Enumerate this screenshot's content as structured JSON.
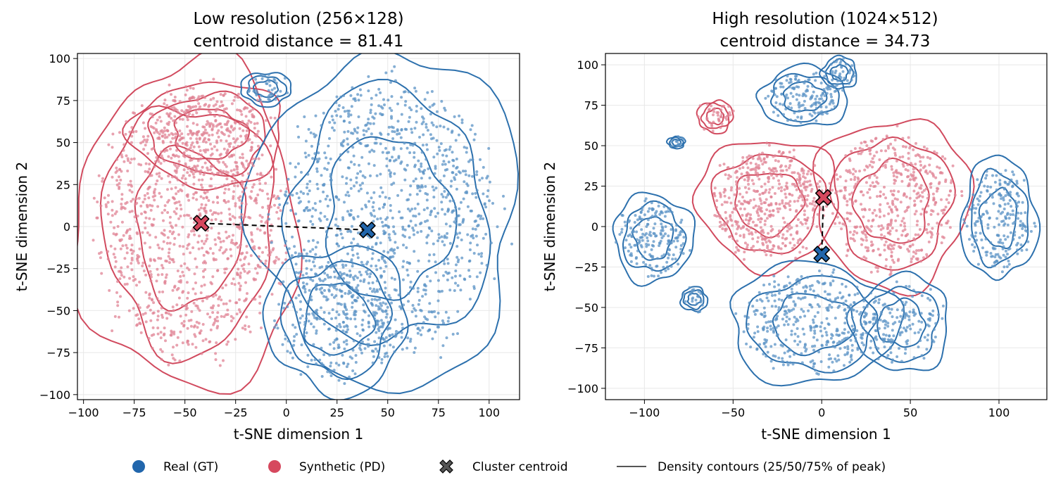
{
  "chart_data": [
    {
      "type": "scatter",
      "title": "Low resolution (256×128)",
      "subtitle": "centroid distance = 81.41",
      "xlabel": "t-SNE dimension 1",
      "ylabel": "t-SNE dimension 2",
      "xlim": [
        -103,
        115
      ],
      "ylim": [
        -103,
        103
      ],
      "xticks": [
        -100,
        -75,
        -50,
        -25,
        0,
        25,
        50,
        75,
        100
      ],
      "yticks": [
        -100,
        -75,
        -50,
        -25,
        0,
        25,
        50,
        75,
        100
      ],
      "grid": true,
      "centroids": [
        {
          "name": "Synthetic (PD)",
          "x": -42,
          "y": 2
        },
        {
          "name": "Real (GT)",
          "x": 40,
          "y": -2
        }
      ],
      "clusters": [
        {
          "series": "Synthetic (PD)",
          "cx": -48,
          "cy": 0,
          "rx": 44,
          "ry": 78,
          "n": 1100
        },
        {
          "series": "Synthetic (PD)",
          "cx": -38,
          "cy": 55,
          "rx": 30,
          "ry": 25,
          "n": 250
        },
        {
          "series": "Real (GT)",
          "cx": 50,
          "cy": 5,
          "rx": 52,
          "ry": 80,
          "n": 1100
        },
        {
          "series": "Real (GT)",
          "cx": 25,
          "cy": -55,
          "rx": 28,
          "ry": 35,
          "n": 250
        },
        {
          "series": "Real (GT)",
          "cx": -10,
          "cy": 82,
          "rx": 10,
          "ry": 8,
          "n": 40
        }
      ]
    },
    {
      "type": "scatter",
      "title": "High resolution (1024×512)",
      "subtitle": "centroid distance = 34.73",
      "xlabel": "t-SNE dimension 1",
      "ylabel": "t-SNE dimension 2",
      "xlim": [
        -122,
        127
      ],
      "ylim": [
        -107,
        107
      ],
      "xticks": [
        -100,
        -50,
        0,
        50,
        100
      ],
      "yticks": [
        -100,
        -75,
        -50,
        -25,
        0,
        25,
        50,
        75,
        100
      ],
      "grid": true,
      "centroids": [
        {
          "name": "Synthetic (PD)",
          "x": 1,
          "y": 18
        },
        {
          "name": "Real (GT)",
          "x": 0,
          "y": -17
        }
      ],
      "clusters": [
        {
          "series": "Synthetic (PD)",
          "cx": -30,
          "cy": 15,
          "rx": 32,
          "ry": 32,
          "n": 500
        },
        {
          "series": "Synthetic (PD)",
          "cx": 40,
          "cy": 15,
          "rx": 35,
          "ry": 42,
          "n": 500
        },
        {
          "series": "Synthetic (PD)",
          "cx": -60,
          "cy": 68,
          "rx": 8,
          "ry": 8,
          "n": 40
        },
        {
          "series": "Real (GT)",
          "cx": -95,
          "cy": -7,
          "rx": 18,
          "ry": 22,
          "n": 200
        },
        {
          "series": "Real (GT)",
          "cx": 100,
          "cy": 5,
          "rx": 17,
          "ry": 30,
          "n": 220
        },
        {
          "series": "Real (GT)",
          "cx": -5,
          "cy": -60,
          "rx": 38,
          "ry": 30,
          "n": 400
        },
        {
          "series": "Real (GT)",
          "cx": 45,
          "cy": -60,
          "rx": 22,
          "ry": 24,
          "n": 150
        },
        {
          "series": "Real (GT)",
          "cx": -10,
          "cy": 80,
          "rx": 20,
          "ry": 15,
          "n": 150
        },
        {
          "series": "Real (GT)",
          "cx": 10,
          "cy": 95,
          "rx": 8,
          "ry": 8,
          "n": 40
        },
        {
          "series": "Real (GT)",
          "cx": -72,
          "cy": -45,
          "rx": 6,
          "ry": 6,
          "n": 25
        },
        {
          "series": "Real (GT)",
          "cx": -82,
          "cy": 52,
          "rx": 4,
          "ry": 3,
          "n": 10
        }
      ]
    }
  ],
  "legend": {
    "position": "bottom-center",
    "items": [
      {
        "label": "Real (GT)",
        "marker": "circle",
        "color": "#2166ac"
      },
      {
        "label": "Synthetic (PD)",
        "marker": "circle",
        "color": "#d6485e"
      },
      {
        "label": "Cluster centroid",
        "marker": "x",
        "color": "#555555"
      },
      {
        "label": "Density contours (25/50/75% of peak)",
        "marker": "line",
        "color": "#555555"
      }
    ]
  },
  "colors": {
    "real": "#2c70ad",
    "synthetic": "#d14a5e",
    "real_point": "#5b93c5",
    "synthetic_point": "#e08394",
    "grid": "#e8e8e8"
  }
}
